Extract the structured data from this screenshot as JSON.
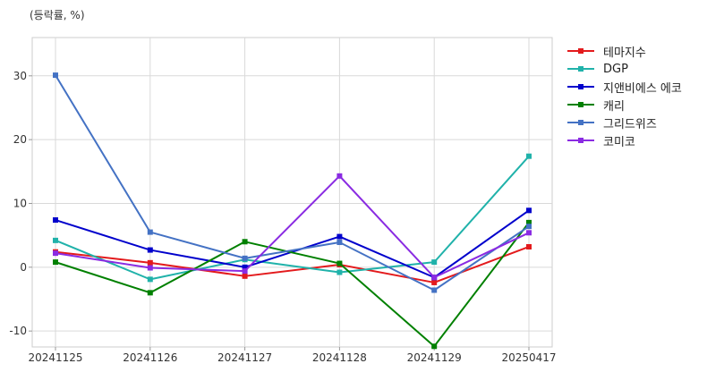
{
  "unit_label": "(등락률, %)",
  "chart_data": {
    "type": "line",
    "title": "",
    "ylabel": "(등락률, %)",
    "xlabel": "",
    "categories": [
      "20241125",
      "20241126",
      "20241127",
      "20241128",
      "20241129",
      "20250417"
    ],
    "ylim": [
      -12.5,
      36
    ],
    "yticks": [
      -10,
      0,
      10,
      20,
      30
    ],
    "grid": true,
    "legend_position": "right",
    "series": [
      {
        "name": "테마지수",
        "color": "#e31a1c",
        "values": [
          2.4,
          0.7,
          -1.4,
          0.4,
          -2.4,
          3.2
        ]
      },
      {
        "name": "DGP",
        "color": "#20b2aa",
        "values": [
          4.2,
          -1.9,
          1.2,
          -0.8,
          0.8,
          17.4
        ]
      },
      {
        "name": "지앤비에스 에코",
        "color": "#0000cc",
        "values": [
          7.4,
          2.7,
          0.0,
          4.8,
          -1.6,
          8.9
        ]
      },
      {
        "name": "캐리",
        "color": "#008000",
        "values": [
          0.8,
          -4.0,
          4.0,
          0.6,
          -12.4,
          7.0
        ]
      },
      {
        "name": "그리드위즈",
        "color": "#4472c4",
        "values": [
          30.1,
          5.5,
          1.4,
          3.9,
          -3.6,
          6.4
        ]
      },
      {
        "name": "코미코",
        "color": "#8a2be2",
        "values": [
          2.2,
          -0.1,
          -0.6,
          14.3,
          -1.6,
          5.4
        ]
      }
    ]
  }
}
